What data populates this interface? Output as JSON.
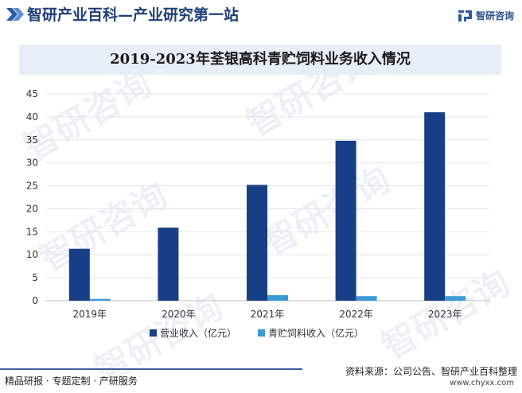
{
  "header": {
    "title": "智研产业百科—产业研究第一站",
    "brand_name": "智研咨询"
  },
  "watermark_text": "智研咨询",
  "chart_data": {
    "type": "bar",
    "title": "2019-2023年荃银高科青贮饲料业务收入情况",
    "categories": [
      "2019年",
      "2020年",
      "2021年",
      "2022年",
      "2023年"
    ],
    "series": [
      {
        "name": "营业收入（亿元）",
        "values": [
          11.3,
          15.9,
          25.2,
          34.8,
          41.0
        ],
        "color": "#173f87"
      },
      {
        "name": "青贮饲料收入（亿元）",
        "values": [
          0.4,
          0.0,
          1.2,
          1.0,
          1.0
        ],
        "color": "#3c9ad6"
      }
    ],
    "ylim": [
      0,
      45
    ],
    "yticks": [
      0,
      5,
      10,
      15,
      20,
      25,
      30,
      35,
      40,
      45
    ],
    "grid": true,
    "legend_position": "bottom"
  },
  "footer": {
    "left_text": "精品研报 · 专题定制 · 产研服务",
    "source": "资料来源：公司公告、智研产业百科整理",
    "url": "www.chyxx.com"
  }
}
